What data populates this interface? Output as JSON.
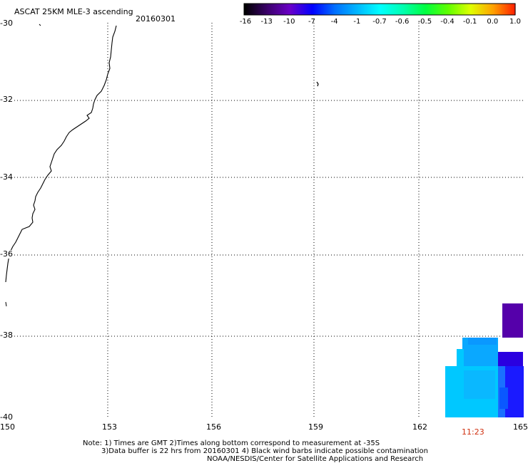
{
  "header": {
    "title": "ASCAT 25KM MLE-3 ascending",
    "date": "20160301"
  },
  "colorbar": {
    "labels": [
      "-16",
      "-13",
      "-10",
      "-7",
      "-4",
      "-1",
      "-0.7",
      "-0.6",
      "-0.5",
      "-0.4",
      "-0.1",
      "0.0",
      "1.0"
    ],
    "colors": [
      "#000000",
      "#3a006a",
      "#6a00c8",
      "#0000ff",
      "#0070ff",
      "#00b8ff",
      "#00ffff",
      "#00ffb0",
      "#00ff40",
      "#60ff00",
      "#e0ff00",
      "#ffa000",
      "#ff1a00"
    ]
  },
  "map": {
    "lat_labels": [
      "-30",
      "-32",
      "-34",
      "-36",
      "-38",
      "-40"
    ],
    "lon_labels": [
      "150",
      "153",
      "156",
      "159",
      "162",
      "165"
    ],
    "lat_values": [
      -30,
      -32,
      -34,
      -36,
      -38,
      -40
    ],
    "lon_values": [
      150,
      153,
      156,
      159,
      162,
      165
    ],
    "grid": "dotted",
    "coastline": "eastern Australia (NSW)",
    "data_colors": [
      "#00c8ff",
      "#0aa8ff",
      "#1a1aff",
      "#2a00e0",
      "#5500aa"
    ],
    "pass_time": "11:23",
    "pass_time_color": "#d03010"
  },
  "footer": {
    "line1": "Note: 1) Times are GMT 2)Times along bottom correspond to measurement at -35S",
    "line2": "3)Data buffer is 22 hrs from 20160301 4) Black wind barbs indicate possible contamination",
    "line3": "NOAA/NESDIS/Center for Satellite Applications and Research"
  }
}
